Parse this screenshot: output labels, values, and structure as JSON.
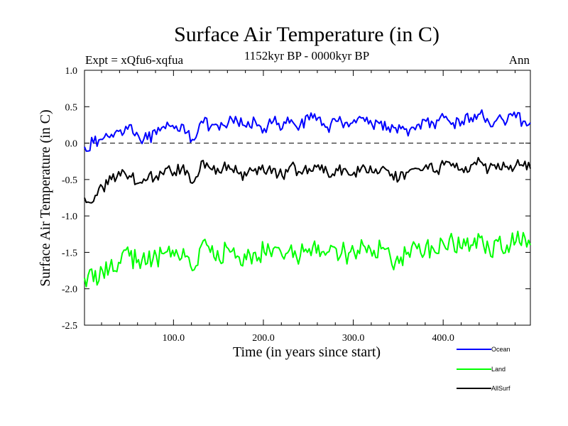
{
  "chart_data": {
    "type": "line",
    "title": "Surface Air Temperature (in C)",
    "subtitle": "1152kyr BP - 0000kyr BP",
    "expt_label": "Expt = xQfu6-xqfua",
    "season_label": "Ann",
    "xlabel": "Time (in years since start)",
    "ylabel": "Surface Air Temperature (in C)",
    "xlim": [
      1,
      497
    ],
    "ylim": [
      -2.5,
      1.0
    ],
    "xticks": [
      100,
      200,
      300,
      400
    ],
    "xtick_labels": [
      "100.0",
      "200.0",
      "300.0",
      "400.0"
    ],
    "yticks": [
      1.0,
      0.5,
      0.0,
      -0.5,
      -1.0,
      -1.5,
      -2.0,
      -2.5
    ],
    "ytick_labels": [
      "1.0",
      "0.5",
      "0.0",
      "-0.5",
      "-1.0",
      "-1.5",
      "-2.0",
      "-2.5"
    ],
    "zero_line": 0.0,
    "series": [
      {
        "name": "Ocean",
        "color": "#0000ff",
        "x": [
          1,
          11,
          21,
          31,
          41,
          51,
          61,
          71,
          81,
          91,
          101,
          111,
          121,
          131,
          141,
          151,
          161,
          171,
          181,
          191,
          201,
          211,
          221,
          231,
          241,
          251,
          261,
          271,
          281,
          291,
          301,
          311,
          321,
          331,
          341,
          351,
          361,
          371,
          381,
          391,
          401,
          411,
          421,
          431,
          441,
          451,
          461,
          471,
          481,
          491,
          497
        ],
        "values": [
          -0.05,
          0.0,
          0.05,
          0.12,
          0.18,
          0.25,
          0.1,
          0.05,
          0.12,
          0.2,
          0.2,
          0.25,
          0.05,
          0.3,
          0.22,
          0.18,
          0.28,
          0.3,
          0.22,
          0.3,
          0.2,
          0.3,
          0.2,
          0.32,
          0.25,
          0.32,
          0.35,
          0.22,
          0.3,
          0.28,
          0.32,
          0.35,
          0.25,
          0.3,
          0.15,
          0.25,
          0.1,
          0.25,
          0.3,
          0.2,
          0.35,
          0.28,
          0.3,
          0.35,
          0.4,
          0.28,
          0.35,
          0.3,
          0.35,
          0.3,
          0.28
        ]
      },
      {
        "name": "Land",
        "color": "#00ff00",
        "x": [
          1,
          11,
          21,
          31,
          41,
          51,
          61,
          71,
          81,
          91,
          101,
          111,
          121,
          131,
          141,
          151,
          161,
          171,
          181,
          191,
          201,
          211,
          221,
          231,
          241,
          251,
          261,
          271,
          281,
          291,
          301,
          311,
          321,
          331,
          341,
          351,
          361,
          371,
          381,
          391,
          401,
          411,
          421,
          431,
          441,
          451,
          461,
          471,
          481,
          491,
          497
        ],
        "values": [
          -1.85,
          -1.9,
          -1.75,
          -1.6,
          -1.65,
          -1.55,
          -1.6,
          -1.65,
          -1.55,
          -1.5,
          -1.55,
          -1.45,
          -1.75,
          -1.4,
          -1.5,
          -1.6,
          -1.45,
          -1.55,
          -1.6,
          -1.5,
          -1.5,
          -1.45,
          -1.55,
          -1.4,
          -1.55,
          -1.45,
          -1.4,
          -1.5,
          -1.45,
          -1.5,
          -1.5,
          -1.4,
          -1.55,
          -1.45,
          -1.55,
          -1.65,
          -1.5,
          -1.45,
          -1.4,
          -1.5,
          -1.4,
          -1.35,
          -1.45,
          -1.4,
          -1.3,
          -1.45,
          -1.35,
          -1.4,
          -1.35,
          -1.3,
          -1.4
        ]
      },
      {
        "name": "AllSurf",
        "color": "#000000",
        "x": [
          1,
          11,
          21,
          31,
          41,
          51,
          61,
          71,
          81,
          91,
          101,
          111,
          121,
          131,
          141,
          151,
          161,
          171,
          181,
          191,
          201,
          211,
          221,
          231,
          241,
          251,
          261,
          271,
          281,
          291,
          301,
          311,
          321,
          331,
          341,
          351,
          361,
          371,
          381,
          391,
          401,
          411,
          421,
          431,
          441,
          451,
          461,
          471,
          481,
          491,
          497
        ],
        "values": [
          -0.75,
          -0.8,
          -0.6,
          -0.5,
          -0.45,
          -0.45,
          -0.55,
          -0.5,
          -0.45,
          -0.35,
          -0.4,
          -0.3,
          -0.55,
          -0.25,
          -0.35,
          -0.4,
          -0.3,
          -0.4,
          -0.45,
          -0.35,
          -0.4,
          -0.35,
          -0.45,
          -0.3,
          -0.4,
          -0.35,
          -0.3,
          -0.4,
          -0.35,
          -0.35,
          -0.4,
          -0.3,
          -0.4,
          -0.35,
          -0.45,
          -0.5,
          -0.4,
          -0.35,
          -0.3,
          -0.4,
          -0.3,
          -0.28,
          -0.35,
          -0.3,
          -0.25,
          -0.35,
          -0.28,
          -0.32,
          -0.3,
          -0.25,
          -0.35
        ]
      }
    ],
    "legend_position": "bottom-right"
  }
}
